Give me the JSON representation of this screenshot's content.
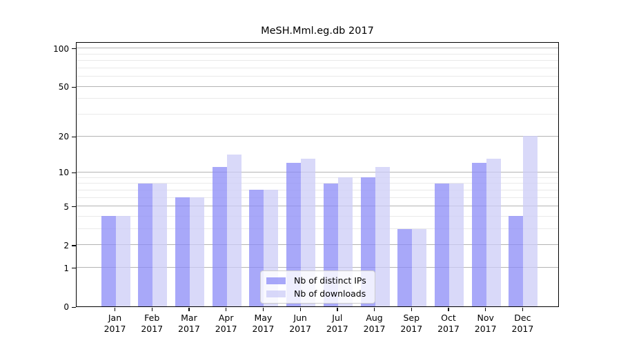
{
  "title": "MeSH.Mml.eg.db 2017",
  "chart_data": {
    "type": "bar",
    "title": "MeSH.Mml.eg.db 2017",
    "x": [
      {
        "month": "Jan",
        "year": "2017"
      },
      {
        "month": "Feb",
        "year": "2017"
      },
      {
        "month": "Mar",
        "year": "2017"
      },
      {
        "month": "Apr",
        "year": "2017"
      },
      {
        "month": "May",
        "year": "2017"
      },
      {
        "month": "Jun",
        "year": "2017"
      },
      {
        "month": "Jul",
        "year": "2017"
      },
      {
        "month": "Aug",
        "year": "2017"
      },
      {
        "month": "Sep",
        "year": "2017"
      },
      {
        "month": "Oct",
        "year": "2017"
      },
      {
        "month": "Nov",
        "year": "2017"
      },
      {
        "month": "Dec",
        "year": "2017"
      }
    ],
    "series": [
      {
        "name": "Nb of distinct IPs",
        "values": [
          4,
          8,
          6,
          11,
          7,
          12,
          8,
          9,
          3,
          8,
          12,
          4
        ],
        "color": "rgba(139, 139, 247, 0.75)"
      },
      {
        "name": "Nb of downloads",
        "values": [
          4,
          8,
          6,
          14,
          7,
          13,
          9,
          11,
          3,
          8,
          13,
          20
        ],
        "color": "rgba(204, 204, 247, 0.75)"
      }
    ],
    "y_axis": {
      "scale": "log1p",
      "tick_values": [
        0,
        1,
        2,
        5,
        10,
        20,
        50,
        100
      ],
      "tick_labels": [
        "0",
        "1",
        "2",
        "5",
        "10",
        "20",
        "50",
        "100"
      ],
      "minor_gridlines": [
        3,
        4,
        6,
        7,
        8,
        9,
        30,
        40,
        60,
        70,
        80,
        90
      ],
      "range_top": 113,
      "range_bottom": 0
    },
    "legend": {
      "position": "lower center",
      "entries": [
        "Nb of distinct IPs",
        "Nb of downloads"
      ]
    },
    "grid": true
  },
  "colors": {
    "background": "#ffffff",
    "bar_distinct_ips": "rgba(139, 139, 247, 0.75)",
    "bar_downloads": "rgba(204, 204, 247, 0.75)",
    "grid_major": "#b3b3b3",
    "grid_minor": "#e9e9e9",
    "spine": "#000000",
    "text": "#000000",
    "legend_border": "#cccccc",
    "legend_background": "rgba(255,255,255,0.8)"
  }
}
